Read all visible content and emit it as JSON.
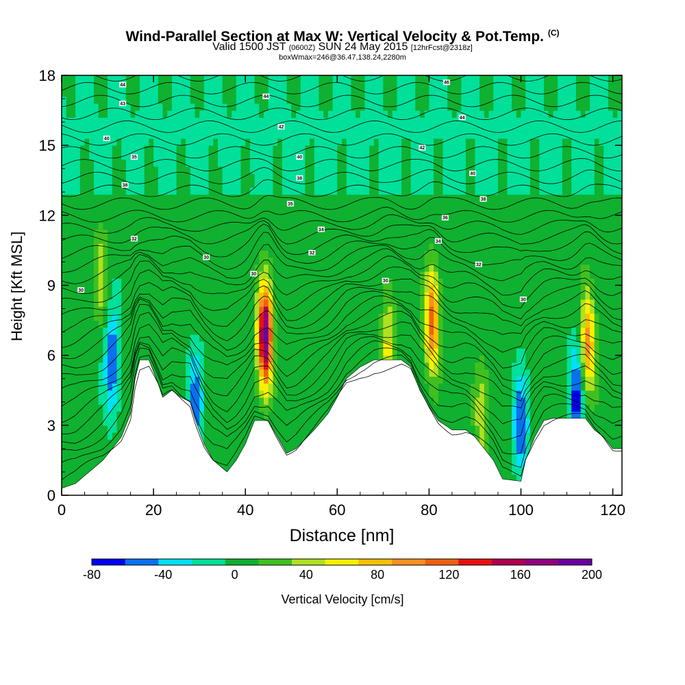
{
  "header": {
    "title_main": "Wind-Parallel Section at Max W: Vertical Velocity & Pot.Temp.",
    "title_mark": "(C)",
    "subtitle_a": "Valid 1500 JST",
    "subtitle_b": "(0600Z)",
    "subtitle_c": "SUN 24 May 2015",
    "subtitle_d": "[12hrFcst@2318z]",
    "box_line": "boxWmax=246@36.47,138.24,2280m"
  },
  "colors": {
    "bins": [
      "#0000f0",
      "#0a70f0",
      "#00e0f8",
      "#00e09a",
      "#10b030",
      "#40c020",
      "#b0e020",
      "#f8f000",
      "#f8c000",
      "#f89020",
      "#f06010",
      "#e81010",
      "#b00050",
      "#900080",
      "#6a00a0"
    ],
    "background_field": "#10b030",
    "upper_field": "#00e09a",
    "terrain": "#ffffff",
    "isentrope": "#000000"
  },
  "chart_data": {
    "type": "heatmap",
    "xlabel": "Distance [nm]",
    "ylabel": "Height [Kft MSL]",
    "xlim": [
      0,
      122
    ],
    "ylim": [
      0,
      18
    ],
    "xticks": [
      0,
      20,
      40,
      60,
      80,
      100,
      120
    ],
    "yticks": [
      0,
      3,
      6,
      9,
      12,
      15,
      18
    ],
    "colorbar": {
      "label": "Vertical Velocity [cm/s]",
      "ticks": [
        -80,
        -40,
        0,
        40,
        80,
        120,
        160,
        200
      ],
      "range": [
        -80,
        200
      ],
      "step": 20
    },
    "terrain": [
      [
        0,
        0.3
      ],
      [
        3,
        0.5
      ],
      [
        6,
        1.0
      ],
      [
        9,
        1.5
      ],
      [
        11,
        2.0
      ],
      [
        13,
        2.5
      ],
      [
        15,
        3.5
      ],
      [
        16,
        5.0
      ],
      [
        17,
        5.8
      ],
      [
        19,
        5.8
      ],
      [
        20,
        5.3
      ],
      [
        21,
        4.8
      ],
      [
        22,
        4.2
      ],
      [
        24,
        4.5
      ],
      [
        26,
        4.2
      ],
      [
        28,
        4.0
      ],
      [
        29,
        3.3
      ],
      [
        31,
        2.2
      ],
      [
        33,
        1.5
      ],
      [
        36,
        1.0
      ],
      [
        38,
        1.5
      ],
      [
        40,
        2.2
      ],
      [
        42,
        3.2
      ],
      [
        45,
        3.2
      ],
      [
        47,
        2.5
      ],
      [
        49,
        1.8
      ],
      [
        51,
        2.0
      ],
      [
        53,
        2.4
      ],
      [
        55,
        2.8
      ],
      [
        58,
        3.5
      ],
      [
        60,
        4.2
      ],
      [
        62,
        5.0
      ],
      [
        65,
        5.5
      ],
      [
        68,
        5.8
      ],
      [
        71,
        5.8
      ],
      [
        74,
        5.8
      ],
      [
        76,
        5.5
      ],
      [
        78,
        4.5
      ],
      [
        80,
        3.8
      ],
      [
        82,
        3.2
      ],
      [
        85,
        2.8
      ],
      [
        88,
        2.8
      ],
      [
        90,
        2.5
      ],
      [
        92,
        2.0
      ],
      [
        94,
        1.5
      ],
      [
        96,
        0.7
      ],
      [
        100,
        0.6
      ],
      [
        101,
        1.5
      ],
      [
        103,
        2.5
      ],
      [
        105,
        3.2
      ],
      [
        107,
        3.3
      ],
      [
        111,
        3.3
      ],
      [
        113,
        3.3
      ],
      [
        114,
        3.3
      ],
      [
        116,
        2.8
      ],
      [
        118,
        2.5
      ],
      [
        120,
        2.0
      ],
      [
        122,
        2.0
      ]
    ],
    "updraft_cores": [
      {
        "x": 44.3,
        "z": 6.8,
        "peak": 200
      },
      {
        "x": 80.7,
        "z": 7.5,
        "peak": 120
      },
      {
        "x": 114.6,
        "z": 6.5,
        "peak": 100
      },
      {
        "x": 71,
        "z": 6.2,
        "peak": 60
      },
      {
        "x": 91.5,
        "z": 3.5,
        "peak": 50
      },
      {
        "x": 8.5,
        "z": 9.5,
        "peak": 40
      }
    ],
    "downdraft_cores": [
      {
        "x": 11,
        "z": 5.7,
        "peak": -70
      },
      {
        "x": 29,
        "z": 4.0,
        "peak": -60
      },
      {
        "x": 100,
        "z": 3.0,
        "peak": -70
      },
      {
        "x": 112,
        "z": 4.2,
        "peak": -80
      }
    ],
    "isentrope_labels": [
      {
        "x": 4.2,
        "z": 8.8,
        "text": "30"
      },
      {
        "x": 9.8,
        "z": 15.3,
        "text": "40"
      },
      {
        "x": 13.3,
        "z": 16.8,
        "text": "43"
      },
      {
        "x": 13.3,
        "z": 17.6,
        "text": "44"
      },
      {
        "x": 15.8,
        "z": 14.5,
        "text": "35"
      },
      {
        "x": 13.8,
        "z": 13.3,
        "text": "38"
      },
      {
        "x": 15.8,
        "z": 11.0,
        "text": "32"
      },
      {
        "x": 31.5,
        "z": 10.2,
        "text": "30"
      },
      {
        "x": 41.8,
        "z": 9.5,
        "text": "30"
      },
      {
        "x": 44.5,
        "z": 17.1,
        "text": "44"
      },
      {
        "x": 47.8,
        "z": 15.8,
        "text": "42"
      },
      {
        "x": 51.8,
        "z": 14.5,
        "text": "40"
      },
      {
        "x": 51.8,
        "z": 13.6,
        "text": "38"
      },
      {
        "x": 49.8,
        "z": 12.5,
        "text": "35"
      },
      {
        "x": 56.5,
        "z": 11.4,
        "text": "34"
      },
      {
        "x": 54.5,
        "z": 10.4,
        "text": "32"
      },
      {
        "x": 70.5,
        "z": 9.2,
        "text": "30"
      },
      {
        "x": 78.5,
        "z": 14.9,
        "text": "42"
      },
      {
        "x": 83.8,
        "z": 17.7,
        "text": "46"
      },
      {
        "x": 87.2,
        "z": 16.2,
        "text": "44"
      },
      {
        "x": 89.5,
        "z": 13.8,
        "text": "40"
      },
      {
        "x": 83.5,
        "z": 11.9,
        "text": "36"
      },
      {
        "x": 82.0,
        "z": 10.9,
        "text": "34"
      },
      {
        "x": 91.8,
        "z": 12.7,
        "text": "38"
      },
      {
        "x": 90.8,
        "z": 9.9,
        "text": "32"
      },
      {
        "x": 100.5,
        "z": 8.4,
        "text": "30"
      }
    ]
  }
}
